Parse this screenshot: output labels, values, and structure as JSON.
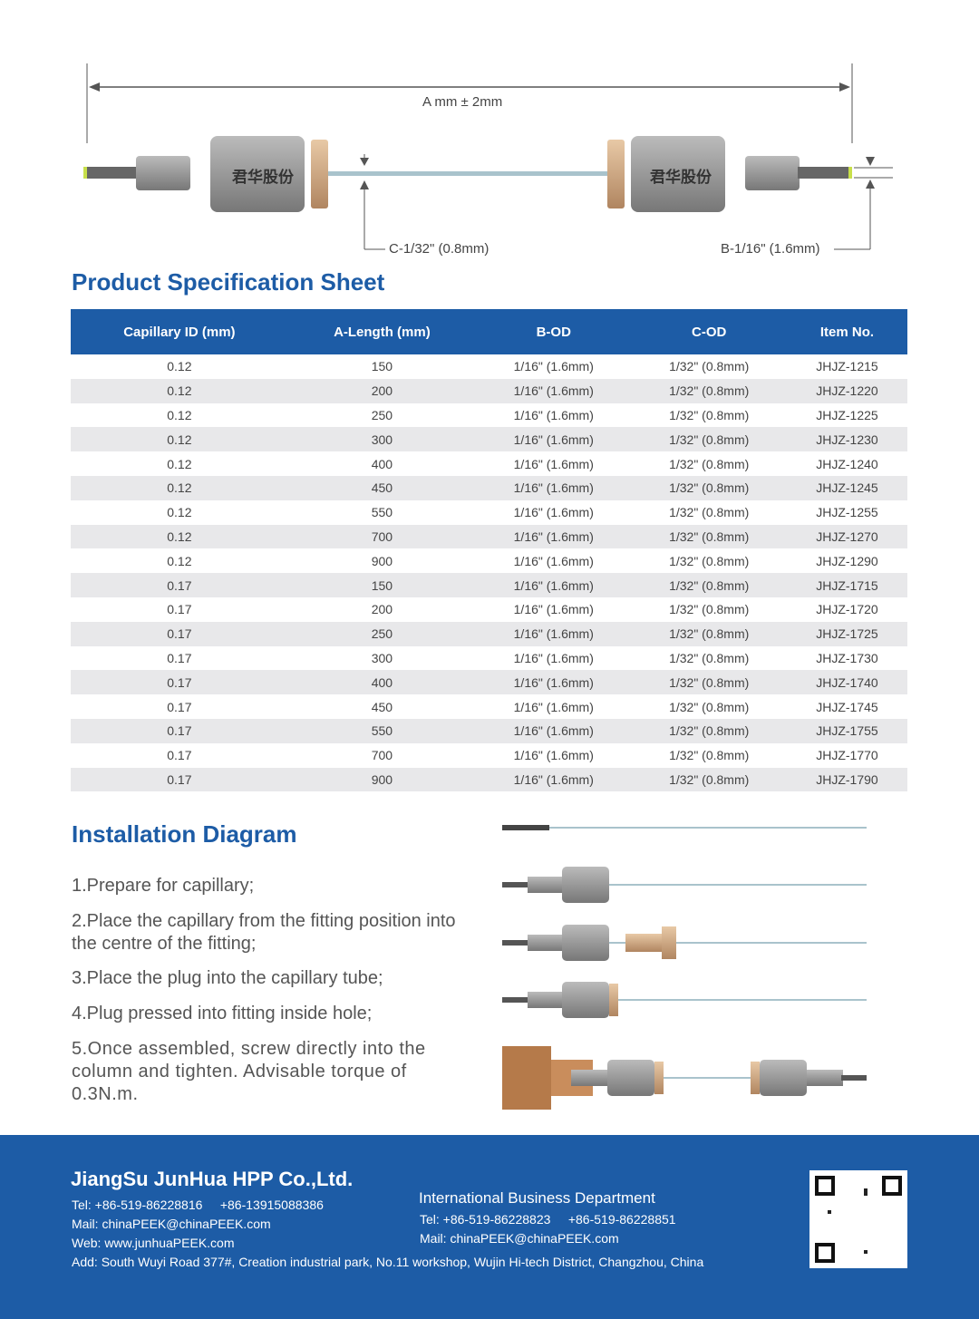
{
  "diagram": {
    "a_label": "A mm ± 2mm",
    "c_label": "C-1/32\" (0.8mm)",
    "b_label": "B-1/16\" (1.6mm)",
    "logo_text": "君华股份"
  },
  "spec": {
    "title": "Product Specification Sheet",
    "columns": [
      "Capillary ID (mm)",
      "A-Length (mm)",
      "B-OD",
      "C-OD",
      "Item No."
    ],
    "rows": [
      [
        "0.12",
        "150",
        "1/16\" (1.6mm)",
        "1/32\" (0.8mm)",
        "JHJZ-1215"
      ],
      [
        "0.12",
        "200",
        "1/16\" (1.6mm)",
        "1/32\" (0.8mm)",
        "JHJZ-1220"
      ],
      [
        "0.12",
        "250",
        "1/16\" (1.6mm)",
        "1/32\" (0.8mm)",
        "JHJZ-1225"
      ],
      [
        "0.12",
        "300",
        "1/16\" (1.6mm)",
        "1/32\" (0.8mm)",
        "JHJZ-1230"
      ],
      [
        "0.12",
        "400",
        "1/16\" (1.6mm)",
        "1/32\" (0.8mm)",
        "JHJZ-1240"
      ],
      [
        "0.12",
        "450",
        "1/16\" (1.6mm)",
        "1/32\" (0.8mm)",
        "JHJZ-1245"
      ],
      [
        "0.12",
        "550",
        "1/16\" (1.6mm)",
        "1/32\" (0.8mm)",
        "JHJZ-1255"
      ],
      [
        "0.12",
        "700",
        "1/16\" (1.6mm)",
        "1/32\" (0.8mm)",
        "JHJZ-1270"
      ],
      [
        "0.12",
        "900",
        "1/16\" (1.6mm)",
        "1/32\" (0.8mm)",
        "JHJZ-1290"
      ],
      [
        "0.17",
        "150",
        "1/16\" (1.6mm)",
        "1/32\" (0.8mm)",
        "JHJZ-1715"
      ],
      [
        "0.17",
        "200",
        "1/16\" (1.6mm)",
        "1/32\" (0.8mm)",
        "JHJZ-1720"
      ],
      [
        "0.17",
        "250",
        "1/16\" (1.6mm)",
        "1/32\" (0.8mm)",
        "JHJZ-1725"
      ],
      [
        "0.17",
        "300",
        "1/16\" (1.6mm)",
        "1/32\" (0.8mm)",
        "JHJZ-1730"
      ],
      [
        "0.17",
        "400",
        "1/16\" (1.6mm)",
        "1/32\" (0.8mm)",
        "JHJZ-1740"
      ],
      [
        "0.17",
        "450",
        "1/16\" (1.6mm)",
        "1/32\" (0.8mm)",
        "JHJZ-1745"
      ],
      [
        "0.17",
        "550",
        "1/16\" (1.6mm)",
        "1/32\" (0.8mm)",
        "JHJZ-1755"
      ],
      [
        "0.17",
        "700",
        "1/16\" (1.6mm)",
        "1/32\" (0.8mm)",
        "JHJZ-1770"
      ],
      [
        "0.17",
        "900",
        "1/16\" (1.6mm)",
        "1/32\" (0.8mm)",
        "JHJZ-1790"
      ]
    ]
  },
  "install": {
    "title": "Installation Diagram",
    "steps": [
      "1.Prepare for capillary;",
      "2.Place the capillary from the fitting position into the centre of the fitting;",
      "3.Place the plug into the capillary tube;",
      "4.Plug pressed into fitting inside hole;",
      "5.Once assembled, screw directly into the column and tighten. Advisable torque of 0.3N.m."
    ]
  },
  "footer": {
    "company": "JiangSu JunHua HPP Co.,Ltd.",
    "tel": "Tel: +86-519-86228816     +86-13915088386",
    "mail": "Mail: chinaPEEK@chinaPEEK.com",
    "web": "Web: www.junhuaPEEK.com",
    "address": "Add: South Wuyi Road 377#, Creation industrial park, No.11 workshop, Wujin Hi-tech District, Changzhou, China",
    "dept": "International Business Department",
    "dept_tel": "Tel: +86-519-86228823     +86-519-86228851",
    "dept_mail": "Mail: chinaPEEK@chinaPEEK.com"
  },
  "colors": {
    "brand_blue": "#1d5ca6",
    "row_alt": "#e8e8ea"
  }
}
